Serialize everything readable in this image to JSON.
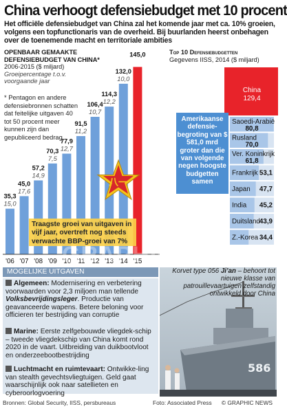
{
  "title": "China verhoogt defensiebudget met 10 procent",
  "subtitle": "Het officiële defensiebudget van China zal het komende jaar met ca. 10% groeien, volgens een topfunctionaris van de overheid. Bij buurlanden heerst onbehagen over de toenemende macht en territoriale ambities",
  "left_chart": {
    "caption_line1": "Openbaar gemaakte",
    "caption_line2": "defensiebudget van China*",
    "range": "2006-2015 ($ miljard)",
    "note_line1": "Groeipercentage t.o.v.",
    "note_line2": "voorgaande jaar",
    "footnote": "* Pentagon en andere defensiebronnen schatten dat feitelijke uitgaven 40 tot 50 procent meer kunnen zijn dan gepubliceerd bedrag",
    "callout": "Traagste groei van uitgaven in vijf jaar, overtreft nog steeds verwachte BBP-groei van 7%"
  },
  "chart_data": [
    {
      "type": "bar",
      "categories": [
        "'06",
        "'07",
        "'08",
        "'09",
        "'10",
        "'11",
        "'12",
        "'13",
        "'14",
        "'15"
      ],
      "values": [
        35.3,
        45.0,
        57.2,
        70.3,
        77.9,
        91.5,
        106.4,
        114.3,
        132.0,
        145.0
      ],
      "growth": [
        "15,0",
        "17,6",
        "14,9",
        "7,5",
        "12,7",
        "11,2",
        "10,7",
        "12,2",
        "10,0",
        ""
      ],
      "value_labels": [
        "35,3",
        "45,0",
        "57,2",
        "70,3",
        "77,9",
        "91,5",
        "106,4",
        "114,3",
        "132,0",
        "145,0"
      ],
      "highlight_color": "#e8232a",
      "bar_color": "#6fa0da"
    },
    {
      "type": "bar",
      "title": "Top 10 Defensiebudgetten",
      "subtitle": "Gegevens IISS, 2014 ($ miljard)",
      "categories": [
        "Amerikaanse",
        "China",
        "Saoedi-Arabië",
        "Rusland",
        "Ver. Koninkrijk",
        "Frankrijk",
        "Japan",
        "India",
        "Duitsland",
        "Z.-Korea"
      ],
      "values": [
        581.0,
        129.4,
        80.8,
        70.0,
        61.8,
        53.1,
        47.7,
        45.2,
        43.9,
        34.4
      ],
      "value_labels": [
        "",
        "129,4",
        "80,8",
        "70,0",
        "61,8",
        "53,1",
        "47,7",
        "45,2",
        "43,9",
        "34,4"
      ]
    }
  ],
  "right_chart": {
    "china_label": "China",
    "china_value": "129,4",
    "us_callout": "Amerikaanse defensie-begroting van $ 581,0 mrd groter dan die van volgende negen hoogste budgetten samen"
  },
  "uses": {
    "header": "Mogelijke uitgaven",
    "items": [
      {
        "bold": "Algemeen:",
        "text": " Modernisering en verbetering voorwaarden voor 2,3 miljoen man tellende ",
        "italic": "Volksbevrijdingsleger",
        "tail": ". Productie van geavanceerde wapens. Betere beloning voor officieren ter bestrijding van corruptie"
      },
      {
        "bold": "Marine:",
        "text": " Eerste zelfgebouwde vliegdek-schip – tweede vliegdekschip van China komt rond 2020 in de vaart. Uitbreiding van duikbootvloot en onderzeebootbestrijding",
        "italic": "",
        "tail": ""
      },
      {
        "bold": "Luchtmacht en ruimtevaart:",
        "text": " Ontwikke-ling van stealth gevechtsvliegtuigen. Geld gaat waarschijnlijk ook naar satellieten en cyberoorlogvoering",
        "italic": "",
        "tail": ""
      }
    ]
  },
  "photo": {
    "caption_a": "Korvet type 056 ",
    "caption_name": "Ji’an",
    "caption_b": " – behoort tot nieuwe klasse van patrouillevaartuigen zelfstandig ontwikkeld door China",
    "hull_number": "586"
  },
  "footer": {
    "sources": "Bronnen: Global Security, IISS, persbureaus",
    "credit": "Foto: Associated Press",
    "copyright": "© GRAPHIC NEWS"
  },
  "watermark": "GRAPHIC NEWS"
}
